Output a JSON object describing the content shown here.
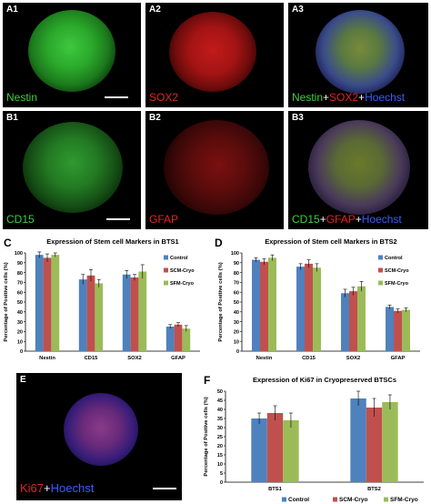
{
  "panels": {
    "a1": {
      "label": "A1",
      "marker": "Nestin",
      "marker_color": "#3ecf3e"
    },
    "a2": {
      "label": "A2",
      "marker": "SOX2",
      "marker_color": "#e02525"
    },
    "a3": {
      "label": "A3",
      "merge": [
        {
          "text": "Nestin",
          "color": "#3ecf3e"
        },
        {
          "text": "+",
          "color": "#ffffff"
        },
        {
          "text": "SOX2",
          "color": "#e02525"
        },
        {
          "text": "+",
          "color": "#ffffff"
        },
        {
          "text": "Hoechst",
          "color": "#3a5cff"
        }
      ]
    },
    "b1": {
      "label": "B1",
      "marker": "CD15",
      "marker_color": "#3ecf3e"
    },
    "b2": {
      "label": "B2",
      "marker": "GFAP",
      "marker_color": "#e02525"
    },
    "b3": {
      "label": "B3",
      "merge": [
        {
          "text": "CD15",
          "color": "#3ecf3e"
        },
        {
          "text": "+",
          "color": "#ffffff"
        },
        {
          "text": "GFAP",
          "color": "#e02525"
        },
        {
          "text": "+",
          "color": "#ffffff"
        },
        {
          "text": "Hoechst",
          "color": "#3a5cff"
        }
      ]
    },
    "e": {
      "label": "E",
      "merge": [
        {
          "text": "Ki67",
          "color": "#e02525"
        },
        {
          "text": "+",
          "color": "#ffffff"
        },
        {
          "text": "Hoechst",
          "color": "#3a5cff"
        }
      ]
    }
  },
  "chart_data": [
    {
      "panel": "C",
      "type": "bar",
      "title": "Expression of Stem cell Markers in BTS1",
      "ylabel": "Percentage of Positive cells (%)",
      "ylim": [
        0,
        100
      ],
      "yticks": [
        "0",
        "10",
        "20",
        "30",
        "40",
        "50",
        "60",
        "70",
        "80",
        "90",
        "100"
      ],
      "categories": [
        "Nestin",
        "CD15",
        "SOX2",
        "GFAP"
      ],
      "legend_position": "right",
      "series": [
        {
          "name": "Control",
          "color": "#4f81bd",
          "values": [
            98,
            73,
            78,
            25
          ],
          "errors": [
            3,
            5,
            4,
            2
          ]
        },
        {
          "name": "SCM-Cryo",
          "color": "#c0504d",
          "values": [
            95,
            77,
            75,
            27
          ],
          "errors": [
            4,
            6,
            3,
            2
          ]
        },
        {
          "name": "SFM-Cryo",
          "color": "#9bbb59",
          "values": [
            98,
            69,
            81,
            23
          ],
          "errors": [
            2,
            4,
            7,
            3
          ]
        }
      ]
    },
    {
      "panel": "D",
      "type": "bar",
      "title": "Expression of Stem cell Markers in BTS2",
      "ylabel": "Percentage of Positive cells (%)",
      "ylim": [
        0,
        100
      ],
      "yticks": [
        "0",
        "10",
        "20",
        "30",
        "40",
        "50",
        "60",
        "70",
        "80",
        "90",
        "100"
      ],
      "categories": [
        "Nestin",
        "CD15",
        "SOX2",
        "GFAP"
      ],
      "legend_position": "right",
      "series": [
        {
          "name": "Control",
          "color": "#4f81bd",
          "values": [
            93,
            86,
            59,
            45
          ],
          "errors": [
            2,
            3,
            4,
            2
          ]
        },
        {
          "name": "SCM-Cryo",
          "color": "#c0504d",
          "values": [
            91,
            89,
            61,
            41
          ],
          "errors": [
            3,
            4,
            4,
            2
          ]
        },
        {
          "name": "SFM-Cryo",
          "color": "#9bbb59",
          "values": [
            95,
            85,
            66,
            42
          ],
          "errors": [
            3,
            4,
            5,
            2
          ]
        }
      ]
    },
    {
      "panel": "F",
      "type": "bar",
      "title": "Expression of Ki67 in Cryopreserved BTSCs",
      "ylabel": "Percentage of Positive cells (%)",
      "ylim": [
        0,
        50
      ],
      "yticks": [
        "0",
        "5",
        "10",
        "15",
        "20",
        "25",
        "30",
        "35",
        "40",
        "45",
        "50"
      ],
      "categories": [
        "BTS1",
        "BTS2"
      ],
      "legend_position": "bottom",
      "series": [
        {
          "name": "Control",
          "color": "#4f81bd",
          "values": [
            35,
            46
          ],
          "errors": [
            3,
            4
          ]
        },
        {
          "name": "SCM-Cryo",
          "color": "#c0504d",
          "values": [
            38,
            41
          ],
          "errors": [
            4,
            5
          ]
        },
        {
          "name": "SFM-Cryo",
          "color": "#9bbb59",
          "values": [
            34,
            44
          ],
          "errors": [
            4,
            4
          ]
        }
      ]
    }
  ]
}
